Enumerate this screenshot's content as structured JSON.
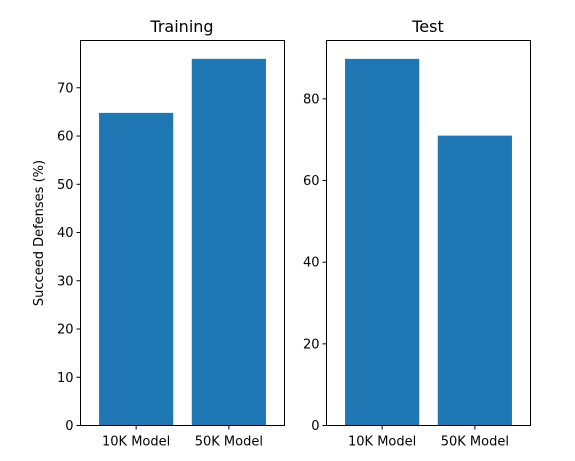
{
  "chart_data": [
    {
      "type": "bar",
      "title": "Training",
      "ylabel": "Succeed Defenses (%)",
      "categories": [
        "10K Model",
        "50K Model"
      ],
      "values": [
        64.8,
        76.0
      ],
      "ylim": [
        0,
        79.8
      ],
      "yticks": [
        0,
        10,
        20,
        30,
        40,
        50,
        60,
        70
      ],
      "color": "#1f77b4"
    },
    {
      "type": "bar",
      "title": "Test",
      "ylabel": "",
      "categories": [
        "10K Model",
        "50K Model"
      ],
      "values": [
        89.8,
        71.0
      ],
      "ylim": [
        0,
        94.3
      ],
      "yticks": [
        0,
        20,
        40,
        60,
        80
      ],
      "color": "#1f77b4"
    }
  ]
}
